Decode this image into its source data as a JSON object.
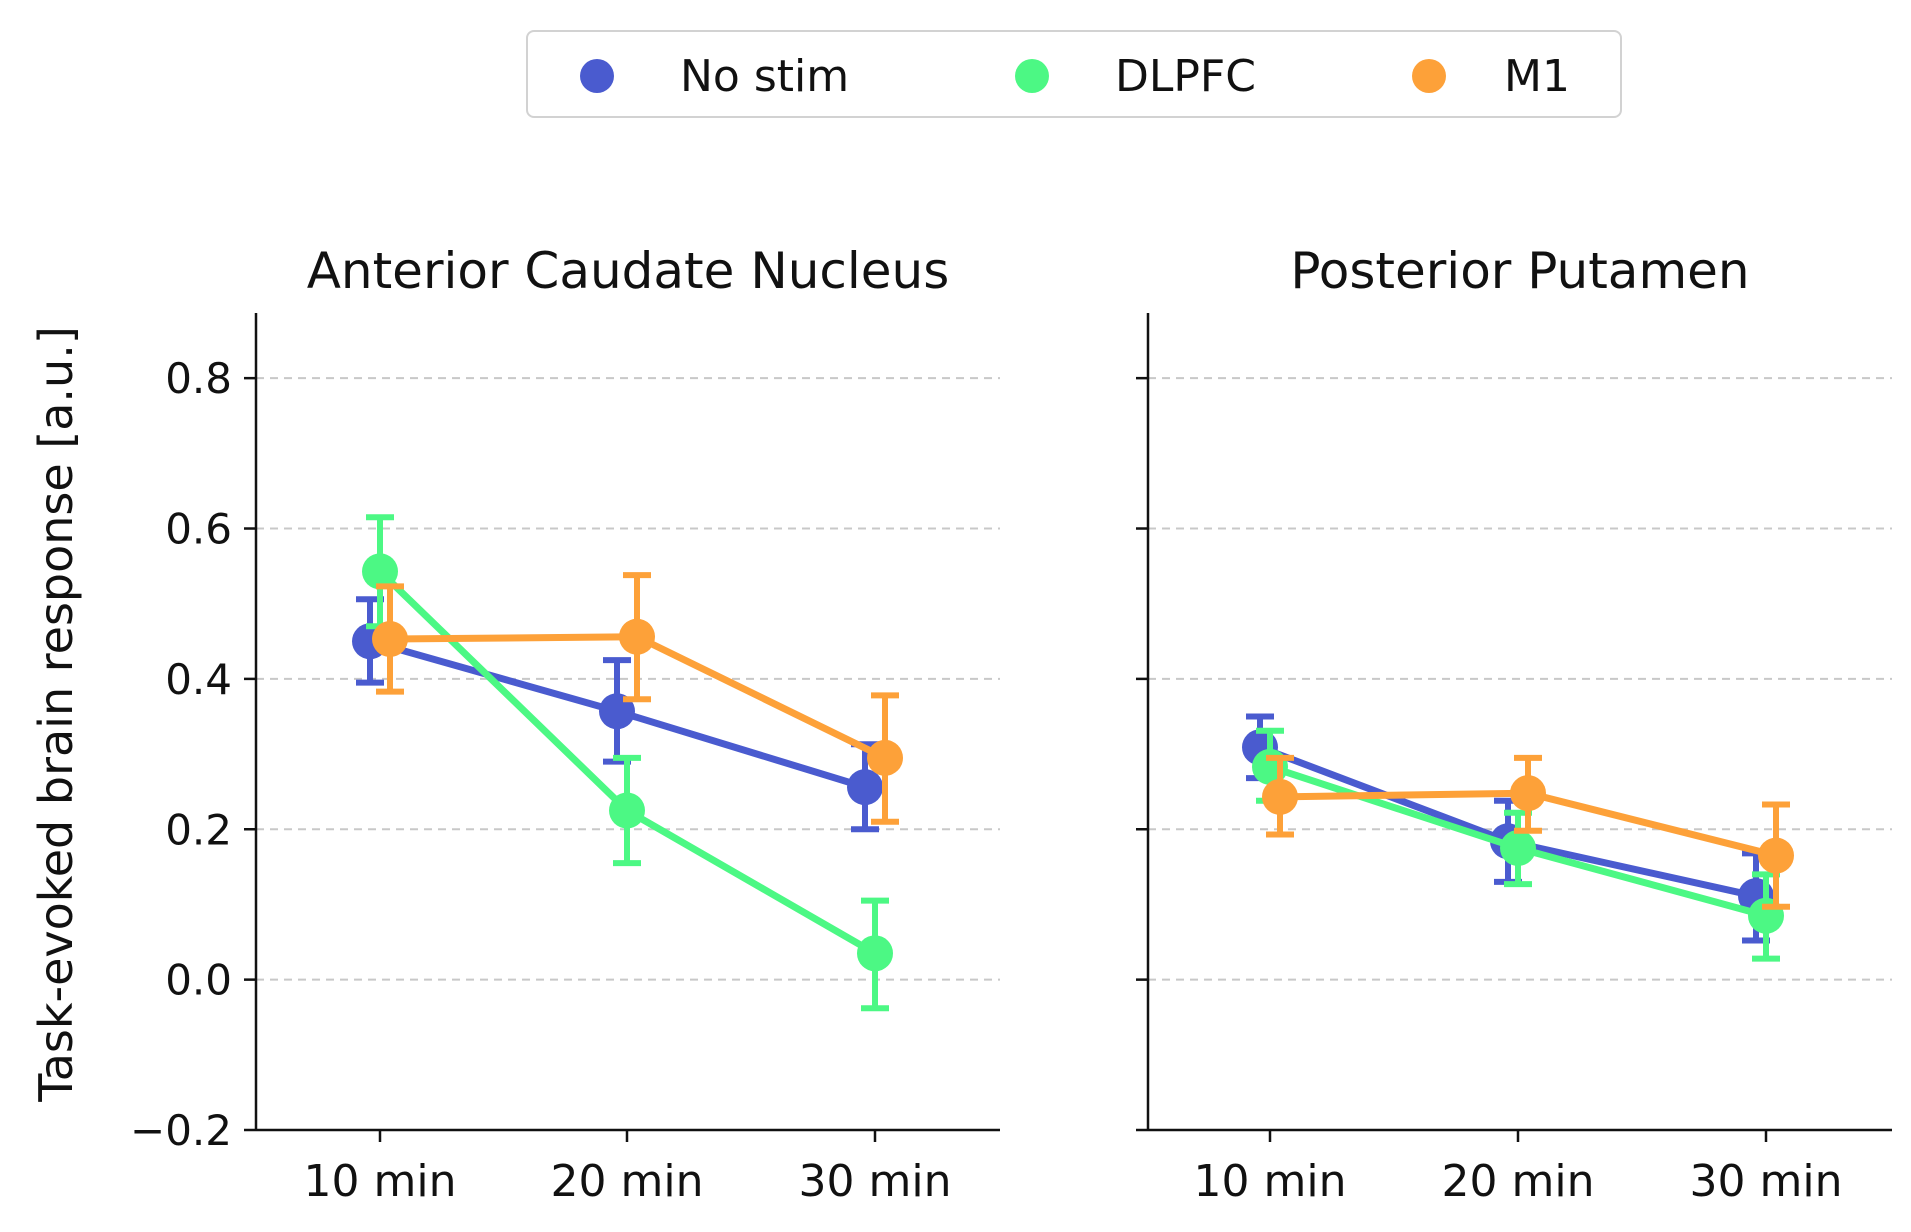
{
  "chart_data": {
    "type": "line",
    "ylabel": "Task-evoked brain response [a.u.]",
    "ylim": [
      -0.2,
      0.88
    ],
    "yticks": [
      -0.2,
      0.0,
      0.2,
      0.4,
      0.6,
      0.8
    ],
    "ytick_labels": [
      "−0.2",
      "0.0",
      "0.2",
      "0.4",
      "0.6",
      "0.8"
    ],
    "categories": [
      "10 min",
      "20 min",
      "30 min"
    ],
    "grid": "y-dashed",
    "legend": {
      "placement": "top-center",
      "entries": [
        {
          "name": "No stim",
          "color": "#4a5bcf"
        },
        {
          "name": "DLPFC",
          "color": "#4cf884"
        },
        {
          "name": "M1",
          "color": "#fda139"
        }
      ]
    },
    "panels": [
      {
        "title": "Anterior Caudate Nucleus",
        "series": [
          {
            "name": "No stim",
            "color": "#4a5bcf",
            "values": [
              0.45,
              0.357,
              0.256
            ],
            "err_low": [
              0.395,
              0.29,
              0.2
            ],
            "err_high": [
              0.506,
              0.425,
              0.313
            ]
          },
          {
            "name": "DLPFC",
            "color": "#4cf884",
            "values": [
              0.543,
              0.225,
              0.035
            ],
            "err_low": [
              0.47,
              0.155,
              -0.038
            ],
            "err_high": [
              0.615,
              0.295,
              0.105
            ]
          },
          {
            "name": "M1",
            "color": "#fda139",
            "values": [
              0.453,
              0.456,
              0.295
            ],
            "err_low": [
              0.383,
              0.373,
              0.21
            ],
            "err_high": [
              0.523,
              0.538,
              0.378
            ]
          }
        ]
      },
      {
        "title": "Posterior Putamen",
        "series": [
          {
            "name": "No stim",
            "color": "#4a5bcf",
            "values": [
              0.309,
              0.184,
              0.111
            ],
            "err_low": [
              0.268,
              0.13,
              0.052
            ],
            "err_high": [
              0.35,
              0.238,
              0.168
            ]
          },
          {
            "name": "DLPFC",
            "color": "#4cf884",
            "values": [
              0.283,
              0.175,
              0.085
            ],
            "err_low": [
              0.238,
              0.127,
              0.028
            ],
            "err_high": [
              0.331,
              0.222,
              0.14
            ]
          },
          {
            "name": "M1",
            "color": "#fda139",
            "values": [
              0.243,
              0.248,
              0.165
            ],
            "err_low": [
              0.193,
              0.198,
              0.097
            ],
            "err_high": [
              0.295,
              0.295,
              0.233
            ]
          }
        ]
      }
    ]
  }
}
